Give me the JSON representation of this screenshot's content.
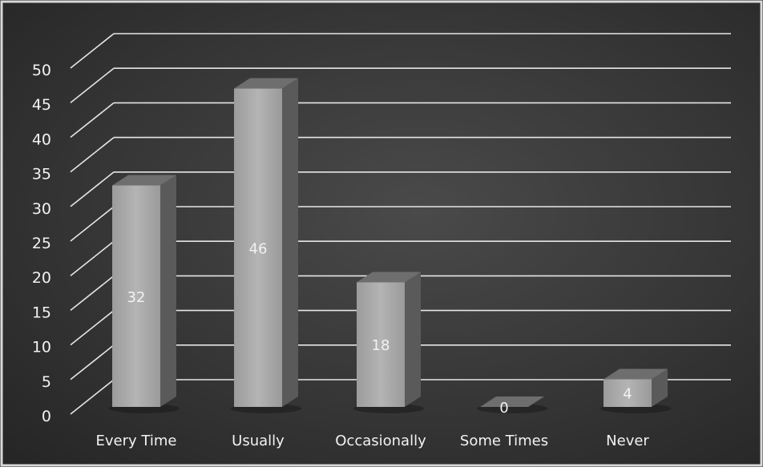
{
  "chart_data": {
    "type": "bar",
    "categories": [
      "Every Time",
      "Usually",
      "Occasionally",
      "Some Times",
      "Never"
    ],
    "values": [
      32,
      46,
      18,
      0,
      4
    ],
    "data_labels": [
      "32",
      "46",
      "18",
      "0",
      "4"
    ],
    "y_ticks": [
      "0",
      "5",
      "10",
      "15",
      "20",
      "25",
      "30",
      "35",
      "40",
      "45",
      "50"
    ],
    "ylim": [
      0,
      50
    ],
    "grid": true,
    "three_d": true,
    "colors": {
      "background": "#3a3a3a",
      "bar_front": "#a8a8a8",
      "bar_top": "#6e6e6e",
      "bar_side": "#5a5a5a",
      "grid": "#e6e6e6",
      "text": "#f2f2f2"
    }
  }
}
